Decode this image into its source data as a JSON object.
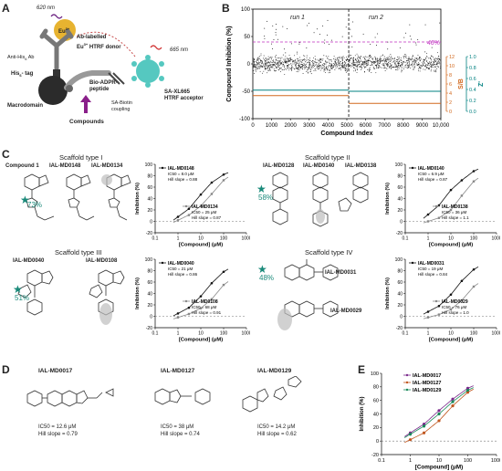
{
  "panels": {
    "A": {
      "letter": "A",
      "wl_620": "620 nm",
      "eu": "Eu",
      "eu_sup": "3+",
      "donor_l1": "Ab-labelled",
      "donor_l2": "Eu",
      "donor_l2_sup": "3+",
      "donor_l2_rest": " HTRF donor",
      "anti_his": "Anti-His",
      "anti_his_sub": "6",
      "anti_his_rest": " Ab",
      "his_tag": "His",
      "his_tag_sub": "6",
      "his_tag_rest": "- tag",
      "peptide_l1": "Bio-ADPR-",
      "peptide_l2": "peptide",
      "wl_665": "665 nm",
      "macrodomain": "Macrodomain",
      "sa_l1": "SA-XL665",
      "sa_l2": "HTRF acceptor",
      "sa_biotin_l1": "SA-Biotin",
      "sa_biotin_l2": "coupling",
      "compounds": "Compounds"
    },
    "B": {
      "letter": "B",
      "run1": "run 1",
      "run2": "run 2",
      "threshold_label": "40%",
      "colors": {
        "threshold": "#c030c0",
        "sb": "#d2691e",
        "z": "#008080",
        "points": "#111111"
      }
    },
    "C": {
      "letter": "C",
      "scaffold_I": "Scaffold type I",
      "scaffold_II": "Scaffold type II",
      "scaffold_III": "Scaffold type III",
      "scaffold_IV": "Scaffold type IV",
      "I_compounds": [
        "Compound 1",
        "IAL-MD0148",
        "IAL-MD0134"
      ],
      "II_compounds": [
        "IAL-MD0128",
        "IAL-MD0140",
        "IAL-MD0138"
      ],
      "III_compounds": [
        "IAL-MD0040",
        "IAL-MD0108"
      ],
      "IV_compounds": [
        "IAL-MD0031",
        "IAL-MD0029"
      ],
      "I_pct": "73%",
      "II_pct": "58%",
      "III_pct": "51%",
      "IV_pct": "48%",
      "star_color": "#1a8a7a"
    },
    "D": {
      "letter": "D",
      "compounds": [
        {
          "name": "IAL-MD0017",
          "ic50": "IC50 = 12.6 μM",
          "hill": "Hill slope = 0.79"
        },
        {
          "name": "IAL-MD0127",
          "ic50": "IC50 = 38 μM",
          "hill": "Hill slope = 0.74"
        },
        {
          "name": "IAL-MD0129",
          "ic50": "IC50 = 14.2 μM",
          "hill": "Hill slope = 0.62"
        }
      ]
    },
    "E": {
      "letter": "E"
    }
  },
  "chart_data": [
    {
      "id": "B",
      "type": "scatter",
      "xlabel": "Compound Index",
      "ylabel": "Compound Inhibition (%)",
      "xlim": [
        0,
        10000
      ],
      "ylim": [
        -100,
        100
      ],
      "x_ticks": [
        "0",
        "1000",
        "2000",
        "3000",
        "4000",
        "5000",
        "6000",
        "7000",
        "8000",
        "9000",
        "10,000"
      ],
      "y_ticks": [
        "100",
        "50",
        "0",
        "-50",
        "-100"
      ],
      "threshold": 40,
      "run_split": 5100,
      "right_axes": [
        {
          "label": "S/B",
          "ticks": [
            "12",
            "10",
            "8",
            "6",
            "4",
            "2",
            "0"
          ],
          "color": "#d2691e"
        },
        {
          "label": "Z'",
          "ticks": [
            "1.0",
            "0.8",
            "0.6",
            "0.4",
            "0.2",
            "0.0"
          ],
          "color": "#008080"
        }
      ]
    },
    {
      "id": "C-I",
      "type": "scatter",
      "xlabel": "[Compound] (μM)",
      "ylabel": "Inhibition (%)",
      "x_ticks": [
        "0.1",
        "1",
        "10",
        "100",
        "1000"
      ],
      "y_ticks": [
        "100",
        "80",
        "60",
        "40",
        "20",
        "0",
        "-20"
      ],
      "series": [
        {
          "name": "IAL-MD0148",
          "ic50": "IC50 = 8.0 μM",
          "hill": "Hill slope = 0.88",
          "x": [
            1,
            3,
            10,
            30,
            100
          ],
          "y": [
            8,
            22,
            47,
            68,
            82
          ]
        },
        {
          "name": "IAL-MD0134",
          "ic50": "IC50 = 25 μM",
          "hill": "Hill slope = 0.87",
          "x": [
            1,
            3,
            10,
            30,
            100
          ],
          "y": [
            2,
            11,
            27,
            48,
            72
          ]
        }
      ]
    },
    {
      "id": "C-II",
      "type": "scatter",
      "xlabel": "[Compound] (μM)",
      "ylabel": "Inhibition (%)",
      "x_ticks": [
        "0.1",
        "1",
        "10",
        "100",
        "1000"
      ],
      "y_ticks": [
        "100",
        "80",
        "60",
        "40",
        "20",
        "0",
        "-20"
      ],
      "series": [
        {
          "name": "IAL-MD0140",
          "ic50": "IC50 = 6.9 μM",
          "hill": "Hill slope = 0.87",
          "x": [
            1,
            3,
            10,
            30,
            100
          ],
          "y": [
            12,
            28,
            55,
            72,
            88
          ]
        },
        {
          "name": "IAL-MD0138",
          "ic50": "IC50 = 36 μM",
          "hill": "Hill slope = 1.1",
          "x": [
            1,
            3,
            10,
            30,
            100
          ],
          "y": [
            0,
            6,
            20,
            45,
            70
          ]
        }
      ]
    },
    {
      "id": "C-III",
      "type": "scatter",
      "xlabel": "[Compound] (μM)",
      "ylabel": "Inhibition (%)",
      "x_ticks": [
        "0.1",
        "1",
        "10",
        "100",
        "1000"
      ],
      "y_ticks": [
        "100",
        "80",
        "60",
        "40",
        "20",
        "0",
        "-20"
      ],
      "series": [
        {
          "name": "IAL-MD0040",
          "ic50": "IC50 = 21 μM",
          "hill": "Hill slope = 0.86",
          "x": [
            1,
            3,
            10,
            30,
            100
          ],
          "y": [
            5,
            15,
            35,
            58,
            78
          ]
        },
        {
          "name": "IAL-MD0108",
          "ic50": "IC50 = 68 μM",
          "hill": "Hill slope = 0.91",
          "x": [
            1,
            3,
            10,
            30,
            100
          ],
          "y": [
            -2,
            4,
            14,
            30,
            55
          ]
        }
      ]
    },
    {
      "id": "C-IV",
      "type": "scatter",
      "xlabel": "[Compound] (μM)",
      "ylabel": "Inhibition (%)",
      "x_ticks": [
        "0.1",
        "1",
        "10",
        "100",
        "1000"
      ],
      "y_ticks": [
        "100",
        "80",
        "60",
        "40",
        "20",
        "0",
        "-20"
      ],
      "series": [
        {
          "name": "IAL-MD0031",
          "ic50": "IC50 = 19 μM",
          "hill": "Hill slope = 0.84",
          "x": [
            1,
            3,
            10,
            30,
            100
          ],
          "y": [
            8,
            18,
            38,
            62,
            82
          ]
        },
        {
          "name": "IAL-MD0029",
          "ic50": "IC50 = 76 μM",
          "hill": "Hill slope = 1.0",
          "x": [
            1,
            3,
            10,
            30,
            100
          ],
          "y": [
            -2,
            3,
            12,
            28,
            52
          ]
        }
      ]
    },
    {
      "id": "E",
      "type": "line",
      "xlabel": "[Compound] (μM)",
      "ylabel": "Inhibition (%)",
      "x_ticks": [
        "0.1",
        "1",
        "10",
        "100",
        "1000"
      ],
      "y_ticks": [
        "100",
        "80",
        "60",
        "40",
        "20",
        "0",
        "-20"
      ],
      "series": [
        {
          "name": "IAL-MD0017",
          "color": "#7b2a8c",
          "x": [
            1,
            3,
            10,
            30,
            100
          ],
          "y": [
            12,
            25,
            45,
            62,
            78
          ]
        },
        {
          "name": "IAL-MD0127",
          "color": "#c0561e",
          "x": [
            1,
            3,
            10,
            30,
            100
          ],
          "y": [
            2,
            12,
            30,
            52,
            72
          ]
        },
        {
          "name": "IAL-MD0129",
          "color": "#1a8a5a",
          "x": [
            1,
            3,
            10,
            30,
            100
          ],
          "y": [
            10,
            22,
            40,
            58,
            75
          ]
        }
      ]
    }
  ]
}
